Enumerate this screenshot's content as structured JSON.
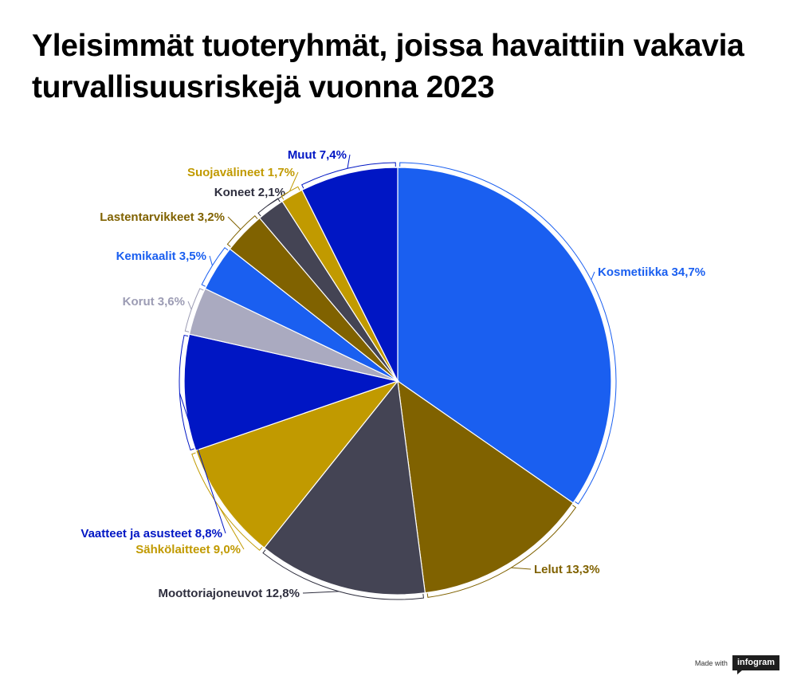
{
  "title": "Yleisimmät tuoteryhmät, joissa havaittiin vakavia turvallisuusriskejä vuonna 2023",
  "chart_data": {
    "type": "pie",
    "slices": [
      {
        "name": "Kosmetiikka",
        "value": 34.7,
        "label": "Kosmetiikka 34,7%",
        "color": "#1a5ff0",
        "label_color": "#1a5ff0"
      },
      {
        "name": "Lelut",
        "value": 13.3,
        "label": "Lelut 13,3%",
        "color": "#806200",
        "label_color": "#806200"
      },
      {
        "name": "Moottoriajoneuvot",
        "value": 12.8,
        "label": "Moottoriajoneuvot 12,8%",
        "color": "#444454",
        "label_color": "#2e2e3e"
      },
      {
        "name": "Sähkölaitteet",
        "value": 9.0,
        "label": "Sähkölaitteet 9,0%",
        "color": "#c19a00",
        "label_color": "#c19a00"
      },
      {
        "name": "Vaatteet ja asusteet",
        "value": 8.8,
        "label": "Vaatteet ja asusteet 8,8%",
        "color": "#0016c4",
        "label_color": "#0016c4"
      },
      {
        "name": "Korut",
        "value": 3.6,
        "label": "Korut 3,6%",
        "color": "#aaaac0",
        "label_color": "#9c9cb4"
      },
      {
        "name": "Kemikaalit",
        "value": 3.5,
        "label": "Kemikaalit 3,5%",
        "color": "#1a5ff0",
        "label_color": "#1a5ff0"
      },
      {
        "name": "Lastentarvikkeet",
        "value": 3.2,
        "label": "Lastentarvikkeet 3,2%",
        "color": "#806200",
        "label_color": "#806200"
      },
      {
        "name": "Koneet",
        "value": 2.1,
        "label": "Koneet 2,1%",
        "color": "#444454",
        "label_color": "#2e2e3e"
      },
      {
        "name": "Suojavälineet",
        "value": 1.7,
        "label": "Suojavälineet 1,7%",
        "color": "#c19a00",
        "label_color": "#c19a00"
      },
      {
        "name": "Muut",
        "value": 7.4,
        "label": "Muut 7,4%",
        "color": "#0016c4",
        "label_color": "#0016c4"
      }
    ],
    "start_angle": "12 o'clock",
    "direction": "clockwise"
  },
  "credit": {
    "made_with": "Made with",
    "brand": "infogram"
  }
}
